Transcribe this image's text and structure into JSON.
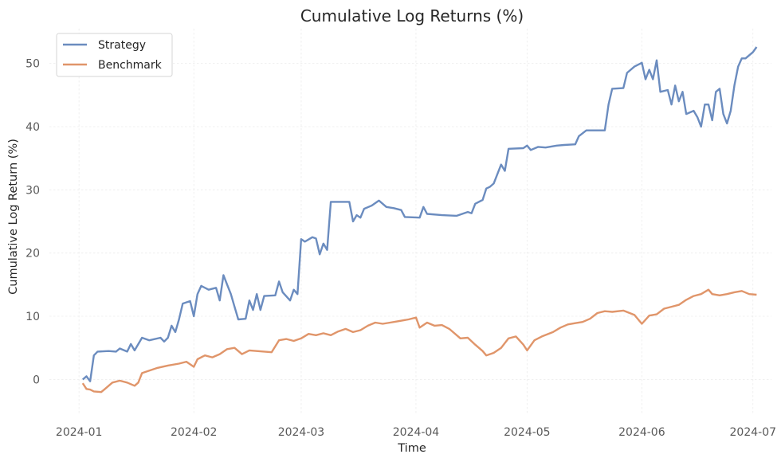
{
  "chart_data": {
    "type": "line",
    "title": "Cumulative Log Returns (%)",
    "xlabel": "Time",
    "ylabel": "Cumulative Log Return (%)",
    "x_ticks": [
      "2024-01",
      "2024-02",
      "2024-03",
      "2024-04",
      "2024-05",
      "2024-06",
      "2024-07"
    ],
    "y_ticks": [
      0,
      10,
      20,
      30,
      40,
      50
    ],
    "xlim": [
      "2023-12-24",
      "2024-07-06"
    ],
    "ylim": [
      -5.5,
      55.5
    ],
    "grid": true,
    "legend_position": "top-left",
    "series": [
      {
        "name": "Strategy",
        "color": "#6b8cbf",
        "points": [
          [
            "2024-01-02",
            0.0
          ],
          [
            "2024-01-03",
            0.5
          ],
          [
            "2024-01-04",
            -0.3
          ],
          [
            "2024-01-05",
            3.8
          ],
          [
            "2024-01-06",
            4.4
          ],
          [
            "2024-01-09",
            4.5
          ],
          [
            "2024-01-11",
            4.4
          ],
          [
            "2024-01-12",
            4.9
          ],
          [
            "2024-01-14",
            4.4
          ],
          [
            "2024-01-15",
            5.6
          ],
          [
            "2024-01-16",
            4.6
          ],
          [
            "2024-01-18",
            6.6
          ],
          [
            "2024-01-20",
            6.2
          ],
          [
            "2024-01-23",
            6.6
          ],
          [
            "2024-01-24",
            6.0
          ],
          [
            "2024-01-25",
            6.6
          ],
          [
            "2024-01-26",
            8.5
          ],
          [
            "2024-01-27",
            7.5
          ],
          [
            "2024-01-28",
            9.5
          ],
          [
            "2024-01-29",
            12.0
          ],
          [
            "2024-01-31",
            12.4
          ],
          [
            "2024-02-01",
            10.0
          ],
          [
            "2024-02-02",
            13.5
          ],
          [
            "2024-02-03",
            14.8
          ],
          [
            "2024-02-05",
            14.2
          ],
          [
            "2024-02-07",
            14.5
          ],
          [
            "2024-02-08",
            12.5
          ],
          [
            "2024-02-09",
            16.5
          ],
          [
            "2024-02-10",
            15.0
          ],
          [
            "2024-02-11",
            13.5
          ],
          [
            "2024-02-12",
            11.5
          ],
          [
            "2024-02-13",
            9.5
          ],
          [
            "2024-02-15",
            9.6
          ],
          [
            "2024-02-16",
            12.5
          ],
          [
            "2024-02-17",
            11.0
          ],
          [
            "2024-02-18",
            13.5
          ],
          [
            "2024-02-19",
            11.0
          ],
          [
            "2024-02-20",
            13.2
          ],
          [
            "2024-02-23",
            13.3
          ],
          [
            "2024-02-24",
            15.5
          ],
          [
            "2024-02-25",
            13.8
          ],
          [
            "2024-02-27",
            12.5
          ],
          [
            "2024-02-28",
            14.2
          ],
          [
            "2024-02-29",
            13.5
          ],
          [
            "2024-03-01",
            22.2
          ],
          [
            "2024-03-02",
            21.8
          ],
          [
            "2024-03-04",
            22.5
          ],
          [
            "2024-03-05",
            22.3
          ],
          [
            "2024-03-06",
            19.8
          ],
          [
            "2024-03-07",
            21.5
          ],
          [
            "2024-03-08",
            20.5
          ],
          [
            "2024-03-09",
            28.1
          ],
          [
            "2024-03-14",
            28.1
          ],
          [
            "2024-03-15",
            25.0
          ],
          [
            "2024-03-16",
            26.0
          ],
          [
            "2024-03-17",
            25.6
          ],
          [
            "2024-03-18",
            27.0
          ],
          [
            "2024-03-20",
            27.5
          ],
          [
            "2024-03-22",
            28.3
          ],
          [
            "2024-03-24",
            27.3
          ],
          [
            "2024-03-26",
            27.1
          ],
          [
            "2024-03-28",
            26.8
          ],
          [
            "2024-03-29",
            25.7
          ],
          [
            "2024-04-02",
            25.6
          ],
          [
            "2024-04-03",
            27.3
          ],
          [
            "2024-04-04",
            26.2
          ],
          [
            "2024-04-08",
            26.0
          ],
          [
            "2024-04-12",
            25.9
          ],
          [
            "2024-04-15",
            26.5
          ],
          [
            "2024-04-16",
            26.3
          ],
          [
            "2024-04-17",
            27.8
          ],
          [
            "2024-04-19",
            28.4
          ],
          [
            "2024-04-20",
            30.2
          ],
          [
            "2024-04-21",
            30.5
          ],
          [
            "2024-04-22",
            31.0
          ],
          [
            "2024-04-24",
            34.0
          ],
          [
            "2024-04-25",
            33.0
          ],
          [
            "2024-04-26",
            36.5
          ],
          [
            "2024-04-30",
            36.6
          ],
          [
            "2024-05-01",
            37.0
          ],
          [
            "2024-05-02",
            36.3
          ],
          [
            "2024-05-04",
            36.8
          ],
          [
            "2024-05-06",
            36.7
          ],
          [
            "2024-05-09",
            37.0
          ],
          [
            "2024-05-11",
            37.1
          ],
          [
            "2024-05-14",
            37.2
          ],
          [
            "2024-05-15",
            38.5
          ],
          [
            "2024-05-17",
            39.4
          ],
          [
            "2024-05-22",
            39.4
          ],
          [
            "2024-05-23",
            43.5
          ],
          [
            "2024-05-24",
            46.0
          ],
          [
            "2024-05-27",
            46.1
          ],
          [
            "2024-05-28",
            48.5
          ],
          [
            "2024-05-30",
            49.5
          ],
          [
            "2024-06-01",
            50.1
          ],
          [
            "2024-06-02",
            47.5
          ],
          [
            "2024-06-03",
            49.0
          ],
          [
            "2024-06-04",
            47.5
          ],
          [
            "2024-06-05",
            50.5
          ],
          [
            "2024-06-06",
            45.5
          ],
          [
            "2024-06-08",
            45.8
          ],
          [
            "2024-06-09",
            43.5
          ],
          [
            "2024-06-10",
            46.5
          ],
          [
            "2024-06-11",
            44.0
          ],
          [
            "2024-06-12",
            45.5
          ],
          [
            "2024-06-13",
            42.0
          ],
          [
            "2024-06-15",
            42.5
          ],
          [
            "2024-06-16",
            41.5
          ],
          [
            "2024-06-17",
            40.0
          ],
          [
            "2024-06-18",
            43.5
          ],
          [
            "2024-06-19",
            43.5
          ],
          [
            "2024-06-20",
            41.0
          ],
          [
            "2024-06-21",
            45.5
          ],
          [
            "2024-06-22",
            46.0
          ],
          [
            "2024-06-23",
            42.0
          ],
          [
            "2024-06-24",
            40.5
          ],
          [
            "2024-06-25",
            42.5
          ],
          [
            "2024-06-26",
            46.5
          ],
          [
            "2024-06-27",
            49.5
          ],
          [
            "2024-06-28",
            50.8
          ],
          [
            "2024-06-29",
            50.8
          ],
          [
            "2024-07-01",
            51.8
          ],
          [
            "2024-07-02",
            52.6
          ]
        ]
      },
      {
        "name": "Benchmark",
        "color": "#e0956a",
        "points": [
          [
            "2024-01-02",
            -0.6
          ],
          [
            "2024-01-03",
            -1.5
          ],
          [
            "2024-01-04",
            -1.6
          ],
          [
            "2024-01-05",
            -1.9
          ],
          [
            "2024-01-07",
            -2.0
          ],
          [
            "2024-01-08",
            -1.5
          ],
          [
            "2024-01-10",
            -0.5
          ],
          [
            "2024-01-12",
            -0.2
          ],
          [
            "2024-01-14",
            -0.5
          ],
          [
            "2024-01-16",
            -1.0
          ],
          [
            "2024-01-17",
            -0.5
          ],
          [
            "2024-01-18",
            1.0
          ],
          [
            "2024-01-20",
            1.4
          ],
          [
            "2024-01-22",
            1.8
          ],
          [
            "2024-01-25",
            2.2
          ],
          [
            "2024-01-28",
            2.5
          ],
          [
            "2024-01-30",
            2.8
          ],
          [
            "2024-02-01",
            2.0
          ],
          [
            "2024-02-02",
            3.2
          ],
          [
            "2024-02-04",
            3.8
          ],
          [
            "2024-02-06",
            3.5
          ],
          [
            "2024-02-08",
            4.0
          ],
          [
            "2024-02-10",
            4.8
          ],
          [
            "2024-02-12",
            5.0
          ],
          [
            "2024-02-14",
            4.0
          ],
          [
            "2024-02-16",
            4.6
          ],
          [
            "2024-02-18",
            4.5
          ],
          [
            "2024-02-20",
            4.4
          ],
          [
            "2024-02-22",
            4.3
          ],
          [
            "2024-02-24",
            6.2
          ],
          [
            "2024-02-26",
            6.4
          ],
          [
            "2024-02-28",
            6.1
          ],
          [
            "2024-03-01",
            6.5
          ],
          [
            "2024-03-03",
            7.2
          ],
          [
            "2024-03-05",
            7.0
          ],
          [
            "2024-03-07",
            7.3
          ],
          [
            "2024-03-09",
            7.0
          ],
          [
            "2024-03-11",
            7.6
          ],
          [
            "2024-03-13",
            8.0
          ],
          [
            "2024-03-15",
            7.5
          ],
          [
            "2024-03-17",
            7.8
          ],
          [
            "2024-03-19",
            8.5
          ],
          [
            "2024-03-21",
            9.0
          ],
          [
            "2024-03-23",
            8.8
          ],
          [
            "2024-03-25",
            9.0
          ],
          [
            "2024-03-27",
            9.2
          ],
          [
            "2024-03-30",
            9.5
          ],
          [
            "2024-04-01",
            9.8
          ],
          [
            "2024-04-02",
            8.2
          ],
          [
            "2024-04-04",
            9.0
          ],
          [
            "2024-04-06",
            8.5
          ],
          [
            "2024-04-08",
            8.6
          ],
          [
            "2024-04-10",
            8.0
          ],
          [
            "2024-04-13",
            6.5
          ],
          [
            "2024-04-15",
            6.6
          ],
          [
            "2024-04-17",
            5.5
          ],
          [
            "2024-04-19",
            4.5
          ],
          [
            "2024-04-20",
            3.8
          ],
          [
            "2024-04-22",
            4.2
          ],
          [
            "2024-04-24",
            5.0
          ],
          [
            "2024-04-26",
            6.5
          ],
          [
            "2024-04-28",
            6.8
          ],
          [
            "2024-04-30",
            5.5
          ],
          [
            "2024-05-01",
            4.6
          ],
          [
            "2024-05-03",
            6.2
          ],
          [
            "2024-05-05",
            6.8
          ],
          [
            "2024-05-08",
            7.5
          ],
          [
            "2024-05-10",
            8.2
          ],
          [
            "2024-05-12",
            8.7
          ],
          [
            "2024-05-14",
            8.9
          ],
          [
            "2024-05-16",
            9.1
          ],
          [
            "2024-05-18",
            9.6
          ],
          [
            "2024-05-20",
            10.5
          ],
          [
            "2024-05-22",
            10.8
          ],
          [
            "2024-05-24",
            10.7
          ],
          [
            "2024-05-27",
            10.9
          ],
          [
            "2024-05-30",
            10.2
          ],
          [
            "2024-06-01",
            8.8
          ],
          [
            "2024-06-03",
            10.1
          ],
          [
            "2024-06-05",
            10.3
          ],
          [
            "2024-06-07",
            11.2
          ],
          [
            "2024-06-09",
            11.5
          ],
          [
            "2024-06-11",
            11.8
          ],
          [
            "2024-06-13",
            12.6
          ],
          [
            "2024-06-15",
            13.2
          ],
          [
            "2024-06-17",
            13.5
          ],
          [
            "2024-06-19",
            14.2
          ],
          [
            "2024-06-20",
            13.5
          ],
          [
            "2024-06-22",
            13.3
          ],
          [
            "2024-06-24",
            13.5
          ],
          [
            "2024-06-26",
            13.8
          ],
          [
            "2024-06-28",
            14.0
          ],
          [
            "2024-06-30",
            13.5
          ],
          [
            "2024-07-02",
            13.4
          ]
        ]
      }
    ]
  }
}
